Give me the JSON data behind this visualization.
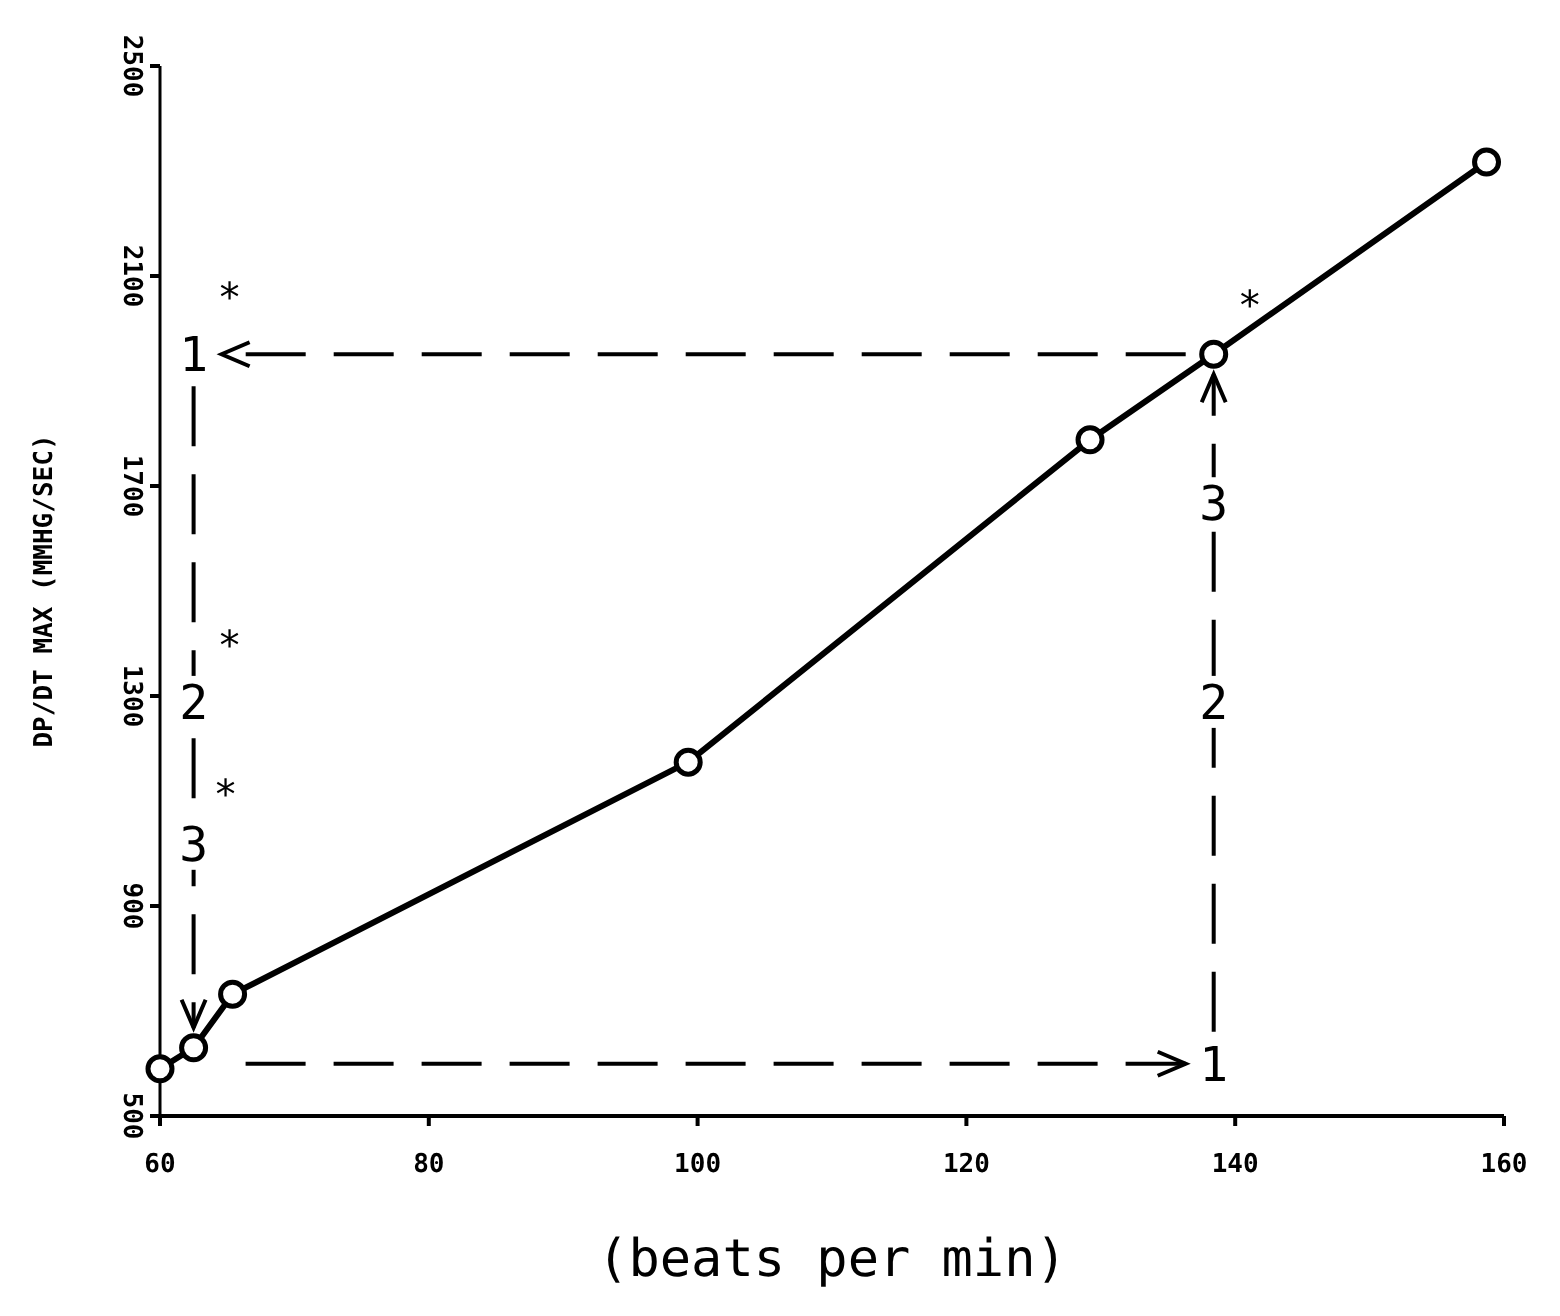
{
  "chart_data": {
    "type": "line",
    "xlabel": "(beats per min)",
    "ylabel": "DP/DT MAX (MMHG/SEC)",
    "x": [
      60,
      62.5,
      65.4,
      99.3,
      129.2,
      138.4,
      158.7
    ],
    "series": [
      {
        "color": "#000000",
        "values": [
          590,
          630,
          732,
          1174,
          1788,
          1951,
          2317
        ]
      }
    ],
    "xlim": [
      60,
      160
    ],
    "xticks": [
      60,
      80,
      100,
      120,
      140,
      160
    ],
    "ylim": [
      500,
      2500
    ],
    "yticks": [
      500,
      900,
      1300,
      1700,
      2100,
      2500
    ],
    "marker": "circle",
    "line_style": "solid",
    "grid": false,
    "annotations": [
      "1",
      "*",
      "2",
      "*",
      "3",
      "*",
      "1",
      "2",
      "3",
      "*"
    ]
  }
}
